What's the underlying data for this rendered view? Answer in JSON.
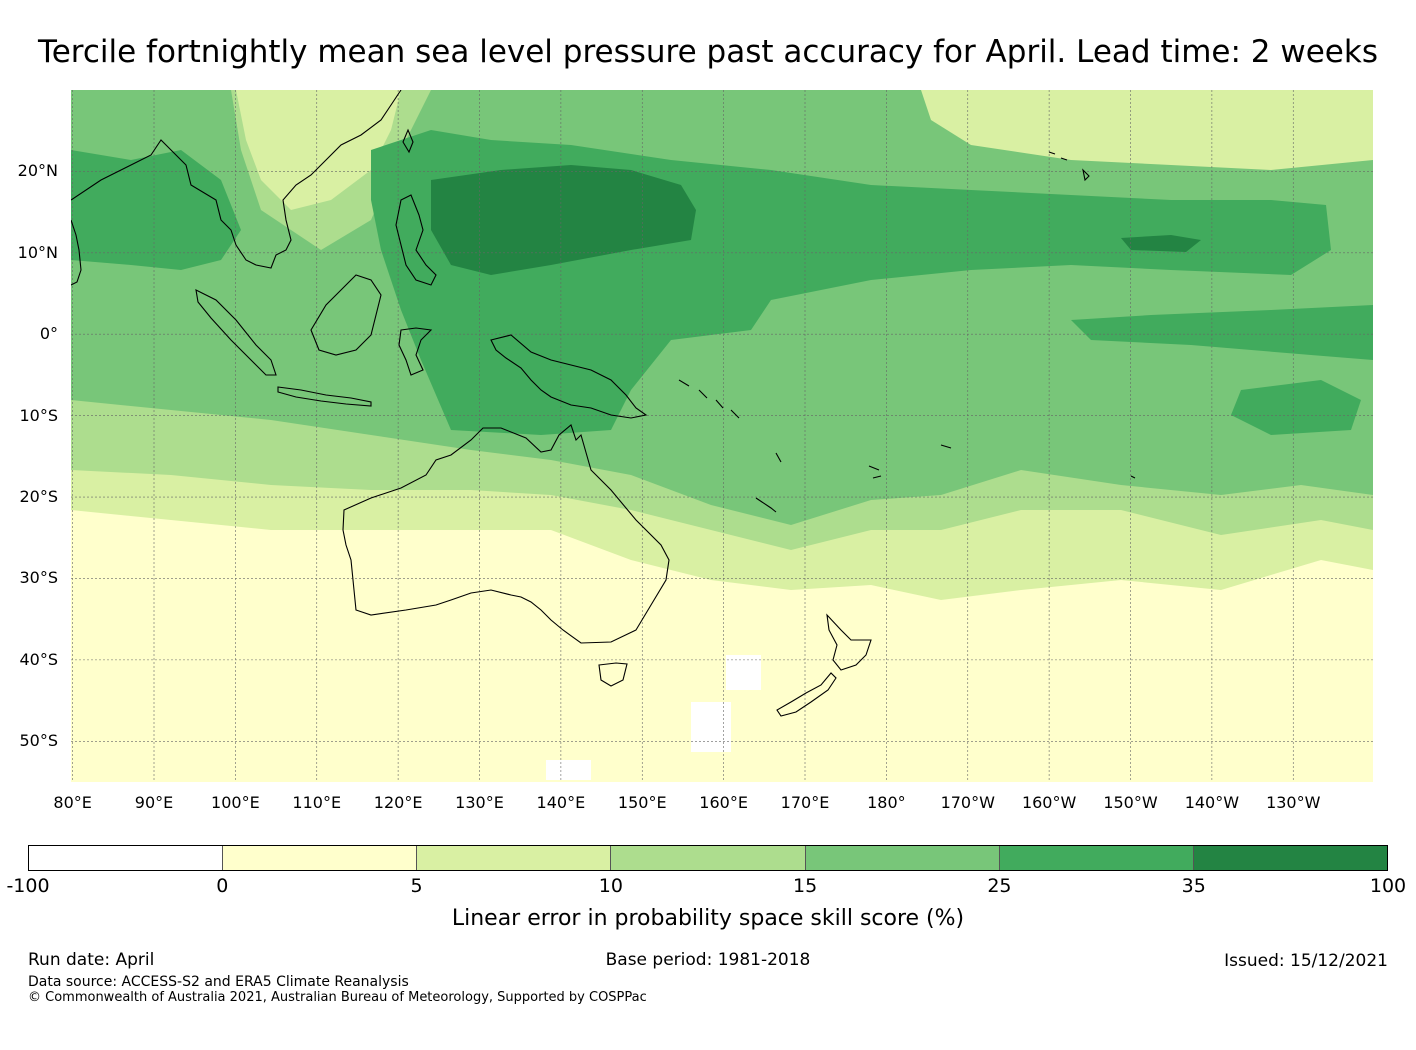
{
  "title": "Tercile fortnightly mean sea level pressure past accuracy for April. Lead time: 2 weeks",
  "map": {
    "lon_labels": [
      "80°E",
      "90°E",
      "100°E",
      "110°E",
      "120°E",
      "130°E",
      "140°E",
      "150°E",
      "160°E",
      "170°E",
      "180°",
      "170°W",
      "160°W",
      "150°W",
      "140°W",
      "130°W"
    ],
    "lat_labels": [
      "20°N",
      "10°N",
      "0°",
      "10°S",
      "20°S",
      "30°S",
      "40°S",
      "50°S"
    ],
    "lat_values": [
      20,
      10,
      0,
      -10,
      -20,
      -30,
      -40,
      -50
    ],
    "lon_values": [
      80,
      90,
      100,
      110,
      120,
      130,
      140,
      150,
      160,
      170,
      180,
      190,
      200,
      210,
      220,
      230
    ],
    "lon_range": [
      79.8,
      239.8
    ],
    "lat_range": [
      -55,
      30
    ],
    "regions": [
      "Australia",
      "New Zealand",
      "Papua New Guinea",
      "Indonesia",
      "Philippines",
      "Hawaii"
    ]
  },
  "colorbar": {
    "ticks": [
      "-100",
      "0",
      "5",
      "10",
      "15",
      "25",
      "35",
      "100"
    ],
    "colors": [
      "#ffffff",
      "#ffffcc",
      "#d9f0a3",
      "#addd8e",
      "#78c679",
      "#41ab5d",
      "#238443"
    ],
    "label": "Linear error in probability space skill score (%)"
  },
  "footer": {
    "run_date": "Run date: April",
    "base_period": "Base period: 1981-2018",
    "issued": "Issued: 15/12/2021",
    "data_source": "Data source: ACCESS-S2 and ERA5 Climate Reanalysis",
    "copyright": "© Commonwealth of Australia 2021, Australian Bureau of Meteorology, Supported by COSPPac"
  }
}
